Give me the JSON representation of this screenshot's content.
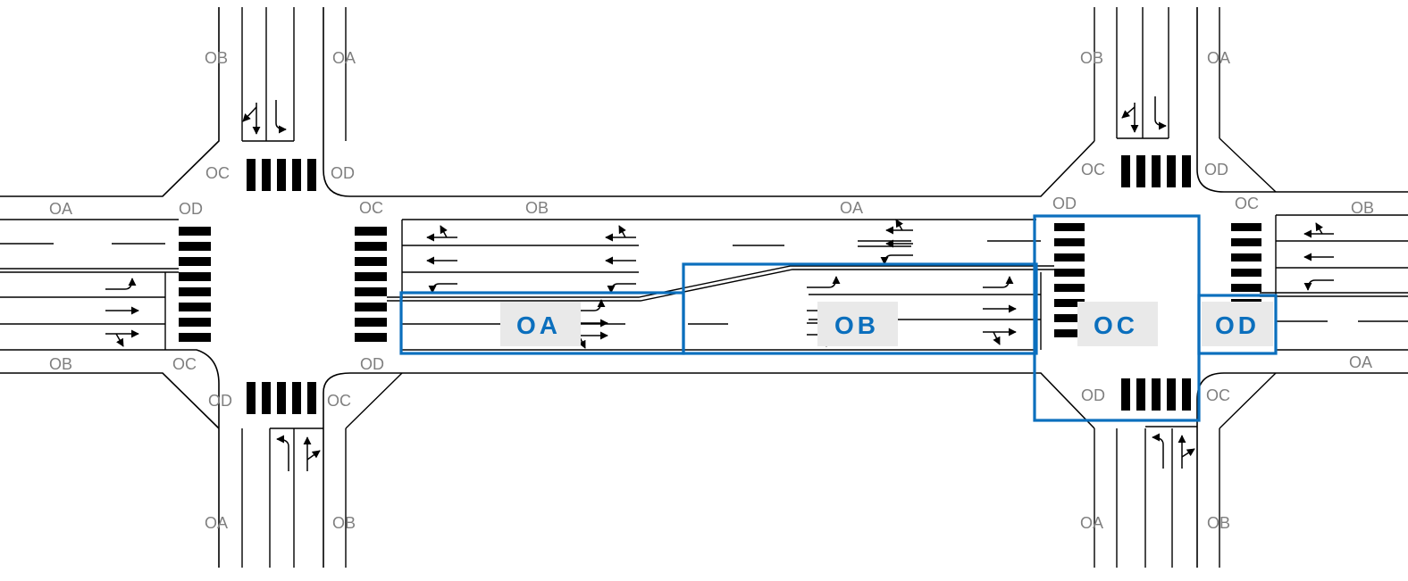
{
  "diagram": {
    "colors": {
      "zone": "#0b6fbd",
      "label": "#7f7f7f",
      "line": "#000000",
      "zone_label_bg": "#e9e9e9"
    },
    "left_intersection": {
      "leg_labels": {
        "north_left": "OB",
        "north_right": "OA",
        "corner_nw_top": "OC",
        "corner_ne_top": "OD",
        "west_top": "OA",
        "corner_nw_left": "OD",
        "corner_ne_right": "OC",
        "west_bottom": "OB",
        "corner_sw_left": "OC",
        "corner_se_right": "OD",
        "corner_sw_bottom": "OD",
        "corner_se_bottom": "OC",
        "south_left": "OA",
        "south_right": "OB"
      }
    },
    "link": {
      "labels": {
        "top_left": "OB",
        "top_right": "OA"
      }
    },
    "right_intersection": {
      "leg_labels": {
        "north_left": "OB",
        "north_right": "OA",
        "corner_nw_top": "OC",
        "corner_ne_top": "OD",
        "corner_nw_left": "OD",
        "corner_ne_right": "OC",
        "east_top": "OB",
        "east_bottom": "OA",
        "corner_sw_bottom": "OD",
        "corner_se_bottom": "OC",
        "south_left": "OA",
        "south_right": "OB"
      }
    },
    "zones": [
      {
        "id": "zone-oa",
        "label": "OA"
      },
      {
        "id": "zone-ob",
        "label": "OB"
      },
      {
        "id": "zone-oc",
        "label": "OC"
      },
      {
        "id": "zone-od",
        "label": "OD"
      }
    ]
  }
}
